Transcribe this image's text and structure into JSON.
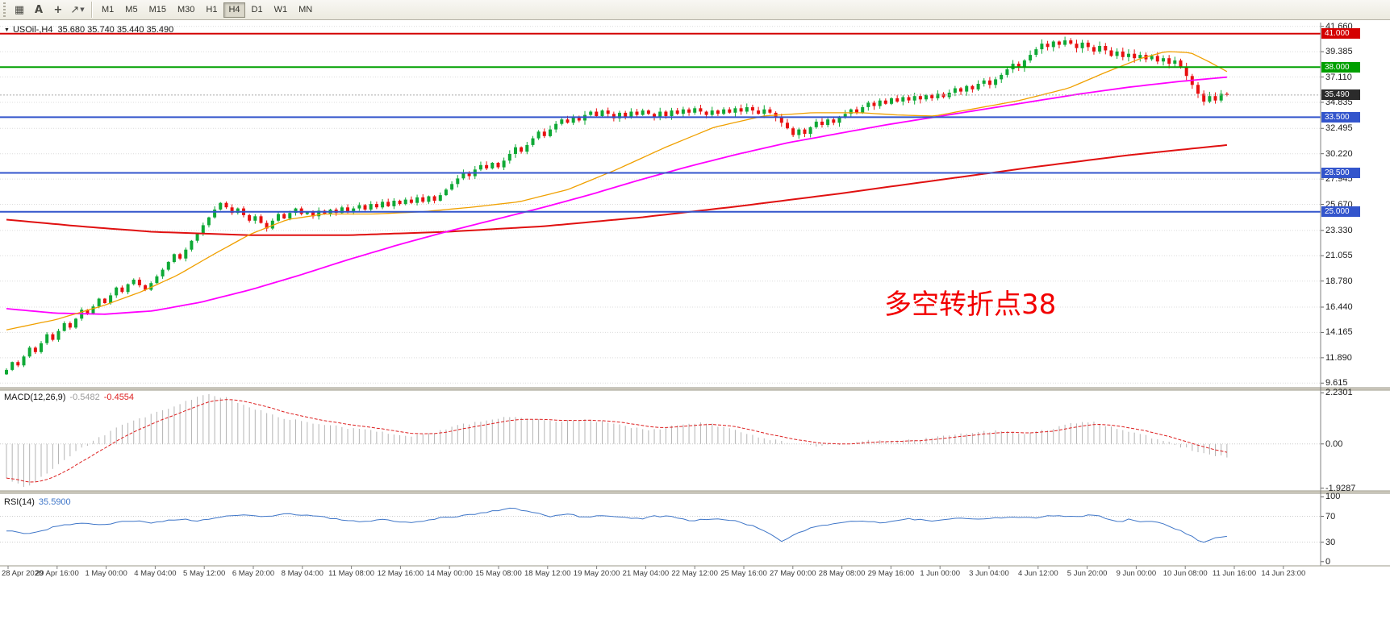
{
  "toolbar": {
    "icons": [
      {
        "name": "bar-chart-icon",
        "glyph": "▦"
      },
      {
        "name": "text-label-icon",
        "glyph": "A"
      },
      {
        "name": "crosshair-icon",
        "glyph": "+"
      },
      {
        "name": "line-tools-icon",
        "glyph": "↗"
      }
    ],
    "timeframes": [
      "M1",
      "M5",
      "M15",
      "M30",
      "H1",
      "H4",
      "D1",
      "W1",
      "MN"
    ],
    "active_timeframe": "H4"
  },
  "chart": {
    "symbol_period": "USOil-,H4",
    "ohlc_text": "35.680 35.740 35.440 35.490",
    "annotation": {
      "text": "多空转折点38",
      "color": "#f20000"
    },
    "price_axis": {
      "range": [
        9.2,
        42.0
      ],
      "ticks": [
        "41.660",
        "39.385",
        "37.110",
        "34.835",
        "32.495",
        "30.220",
        "27.945",
        "25.670",
        "23.330",
        "21.055",
        "18.780",
        "16.440",
        "14.165",
        "11.890",
        "9.615"
      ]
    },
    "hlines": [
      {
        "price": 41.0,
        "label": "41.000",
        "color": "#d40000"
      },
      {
        "price": 38.0,
        "label": "38.000",
        "color": "#00a000"
      },
      {
        "price": 33.5,
        "label": "33.500",
        "color": "#3355cc"
      },
      {
        "price": 28.5,
        "label": "28.500",
        "color": "#3355cc"
      },
      {
        "price": 25.0,
        "label": "25.000",
        "color": "#3355cc"
      }
    ],
    "bid": {
      "price": 35.49,
      "label": "35.490",
      "color": "#2b2b2b"
    }
  },
  "macd": {
    "label": "MACD(12,26,9)",
    "value_main": "-0.5482",
    "value_signal": "-0.4554",
    "range": [
      -2.05,
      2.35
    ],
    "ticks": [
      "2.2301",
      "0.00",
      "-1.9287"
    ],
    "hist_color": "#b4b4b4",
    "signal_color": "#dd2020"
  },
  "rsi": {
    "label": "RSI(14)",
    "value": "35.5900",
    "range": [
      -4,
      103
    ],
    "ticks": [
      "100",
      "70",
      "30",
      "0"
    ],
    "levels": [
      30,
      70
    ],
    "line_color": "#3f76c8"
  },
  "chart_data": {
    "type": "candlestick",
    "symbol": "USOil",
    "timeframe": "H4",
    "ohlc_current": {
      "open": 35.68,
      "high": 35.74,
      "low": 35.44,
      "close": 35.49
    },
    "up_color": "#0fa936",
    "down_color": "#e81010",
    "open_first": 10.4,
    "closes": [
      10.8,
      11.5,
      11.2,
      12.0,
      12.8,
      12.4,
      13.2,
      14.0,
      13.5,
      14.3,
      15.0,
      14.6,
      15.4,
      16.2,
      15.8,
      16.5,
      17.2,
      16.8,
      17.5,
      18.2,
      17.8,
      18.5,
      18.9,
      18.4,
      18.0,
      18.6,
      19.2,
      19.8,
      20.5,
      21.2,
      20.8,
      21.6,
      22.4,
      23.0,
      23.8,
      24.5,
      25.2,
      25.8,
      25.4,
      24.9,
      25.3,
      24.7,
      24.2,
      24.6,
      24.0,
      23.5,
      24.2,
      24.8,
      24.4,
      24.9,
      25.3,
      24.8,
      25.0,
      24.6,
      25.1,
      24.8,
      25.2,
      24.9,
      25.4,
      25.0,
      25.3,
      25.6,
      25.2,
      25.7,
      25.4,
      25.9,
      25.5,
      26.0,
      25.7,
      26.1,
      25.8,
      26.3,
      25.9,
      26.4,
      26.0,
      26.5,
      27.0,
      27.5,
      28.0,
      28.5,
      28.2,
      28.8,
      29.2,
      28.9,
      29.4,
      29.0,
      29.6,
      30.2,
      30.8,
      30.4,
      31.0,
      31.6,
      32.2,
      31.8,
      32.4,
      32.9,
      33.3,
      33.0,
      33.5,
      33.2,
      33.7,
      34.0,
      33.6,
      34.1,
      33.8,
      33.4,
      33.9,
      33.5,
      34.0,
      33.7,
      34.1,
      33.8,
      33.5,
      34.0,
      33.6,
      34.1,
      33.8,
      34.2,
      33.9,
      34.3,
      34.0,
      33.7,
      34.1,
      33.8,
      34.2,
      33.9,
      34.3,
      34.0,
      34.4,
      34.1,
      33.8,
      34.2,
      33.9,
      33.5,
      33.0,
      32.5,
      31.9,
      32.4,
      32.0,
      32.6,
      33.1,
      32.8,
      33.3,
      33.0,
      33.5,
      33.8,
      34.2,
      33.9,
      34.4,
      34.8,
      34.5,
      35.0,
      34.7,
      35.2,
      34.9,
      35.3,
      35.0,
      35.4,
      35.1,
      35.5,
      35.2,
      35.6,
      35.3,
      35.7,
      36.1,
      35.8,
      36.3,
      36.0,
      36.5,
      36.8,
      36.4,
      36.9,
      37.3,
      37.8,
      38.3,
      38.0,
      38.6,
      39.1,
      39.6,
      40.1,
      39.8,
      40.3,
      40.0,
      40.4,
      40.1,
      39.7,
      40.2,
      39.8,
      39.4,
      39.9,
      39.5,
      39.0,
      39.4,
      38.9,
      39.2,
      38.8,
      39.1,
      38.7,
      39.0,
      38.5,
      38.8,
      38.3,
      38.6,
      38.0,
      37.2,
      36.4,
      35.6,
      34.9,
      35.4,
      35.0,
      35.6,
      35.49
    ],
    "ma_fast": {
      "color": "#f0a000",
      "width": 1.3,
      "points": [
        [
          0,
          14.4
        ],
        [
          0.04,
          15.3
        ],
        [
          0.08,
          16.6
        ],
        [
          0.11,
          17.8
        ],
        [
          0.14,
          19.3
        ],
        [
          0.17,
          21.2
        ],
        [
          0.2,
          23.0
        ],
        [
          0.23,
          24.3
        ],
        [
          0.26,
          24.8
        ],
        [
          0.3,
          24.8
        ],
        [
          0.34,
          25.0
        ],
        [
          0.38,
          25.4
        ],
        [
          0.42,
          25.9
        ],
        [
          0.46,
          27.0
        ],
        [
          0.5,
          28.8
        ],
        [
          0.54,
          30.8
        ],
        [
          0.58,
          32.6
        ],
        [
          0.62,
          33.6
        ],
        [
          0.66,
          33.9
        ],
        [
          0.7,
          33.9
        ],
        [
          0.73,
          33.7
        ],
        [
          0.76,
          33.6
        ],
        [
          0.79,
          34.2
        ],
        [
          0.83,
          35.0
        ],
        [
          0.87,
          36.1
        ],
        [
          0.9,
          37.5
        ],
        [
          0.93,
          38.8
        ],
        [
          0.95,
          39.4
        ],
        [
          0.97,
          39.3
        ],
        [
          0.985,
          38.5
        ],
        [
          1,
          37.6
        ]
      ]
    },
    "ma_mid": {
      "color": "#ff00ff",
      "width": 1.8,
      "points": [
        [
          0,
          16.3
        ],
        [
          0.04,
          15.9
        ],
        [
          0.08,
          15.8
        ],
        [
          0.12,
          16.1
        ],
        [
          0.16,
          16.9
        ],
        [
          0.2,
          18.0
        ],
        [
          0.24,
          19.3
        ],
        [
          0.28,
          20.7
        ],
        [
          0.32,
          22.0
        ],
        [
          0.36,
          23.2
        ],
        [
          0.4,
          24.3
        ],
        [
          0.44,
          25.4
        ],
        [
          0.48,
          26.6
        ],
        [
          0.52,
          27.9
        ],
        [
          0.56,
          29.1
        ],
        [
          0.6,
          30.2
        ],
        [
          0.64,
          31.2
        ],
        [
          0.68,
          32.0
        ],
        [
          0.72,
          32.8
        ],
        [
          0.76,
          33.5
        ],
        [
          0.8,
          34.2
        ],
        [
          0.84,
          34.9
        ],
        [
          0.88,
          35.6
        ],
        [
          0.92,
          36.2
        ],
        [
          0.96,
          36.7
        ],
        [
          1,
          37.1
        ]
      ]
    },
    "ma_slow": {
      "color": "#e01010",
      "width": 2,
      "points": [
        [
          0,
          24.3
        ],
        [
          0.06,
          23.7
        ],
        [
          0.12,
          23.2
        ],
        [
          0.2,
          22.9
        ],
        [
          0.28,
          22.9
        ],
        [
          0.36,
          23.2
        ],
        [
          0.44,
          23.7
        ],
        [
          0.52,
          24.5
        ],
        [
          0.6,
          25.5
        ],
        [
          0.68,
          26.6
        ],
        [
          0.76,
          27.8
        ],
        [
          0.84,
          29.0
        ],
        [
          0.92,
          30.1
        ],
        [
          1,
          31.0
        ]
      ]
    },
    "macd_points": [
      [
        0,
        -1.5
      ],
      [
        0.015,
        -1.9
      ],
      [
        0.03,
        -1.4
      ],
      [
        0.05,
        -0.6
      ],
      [
        0.07,
        0.1
      ],
      [
        0.09,
        0.7
      ],
      [
        0.11,
        1.1
      ],
      [
        0.13,
        1.5
      ],
      [
        0.15,
        1.9
      ],
      [
        0.165,
        2.2
      ],
      [
        0.18,
        2.0
      ],
      [
        0.2,
        1.6
      ],
      [
        0.22,
        1.2
      ],
      [
        0.25,
        0.9
      ],
      [
        0.28,
        0.7
      ],
      [
        0.31,
        0.5
      ],
      [
        0.33,
        0.35
      ],
      [
        0.35,
        0.5
      ],
      [
        0.37,
        0.8
      ],
      [
        0.39,
        1.0
      ],
      [
        0.41,
        1.2
      ],
      [
        0.43,
        1.1
      ],
      [
        0.45,
        0.95
      ],
      [
        0.47,
        1.05
      ],
      [
        0.49,
        0.95
      ],
      [
        0.51,
        0.75
      ],
      [
        0.53,
        0.6
      ],
      [
        0.55,
        0.8
      ],
      [
        0.57,
        0.95
      ],
      [
        0.59,
        0.7
      ],
      [
        0.61,
        0.4
      ],
      [
        0.63,
        0.15
      ],
      [
        0.65,
        0.0
      ],
      [
        0.67,
        -0.1
      ],
      [
        0.69,
        0.05
      ],
      [
        0.71,
        0.15
      ],
      [
        0.73,
        0.1
      ],
      [
        0.75,
        0.2
      ],
      [
        0.77,
        0.35
      ],
      [
        0.79,
        0.5
      ],
      [
        0.81,
        0.55
      ],
      [
        0.83,
        0.45
      ],
      [
        0.85,
        0.6
      ],
      [
        0.87,
        0.85
      ],
      [
        0.89,
        0.95
      ],
      [
        0.91,
        0.7
      ],
      [
        0.93,
        0.4
      ],
      [
        0.95,
        0.1
      ],
      [
        0.97,
        -0.25
      ],
      [
        0.985,
        -0.45
      ],
      [
        1,
        -0.55
      ]
    ],
    "rsi_points": [
      [
        0,
        48
      ],
      [
        0.02,
        42
      ],
      [
        0.04,
        54
      ],
      [
        0.06,
        60
      ],
      [
        0.08,
        57
      ],
      [
        0.1,
        63
      ],
      [
        0.12,
        60
      ],
      [
        0.14,
        66
      ],
      [
        0.16,
        63
      ],
      [
        0.17,
        68
      ],
      [
        0.19,
        72
      ],
      [
        0.21,
        69
      ],
      [
        0.23,
        74
      ],
      [
        0.25,
        71
      ],
      [
        0.27,
        66
      ],
      [
        0.29,
        61
      ],
      [
        0.31,
        65
      ],
      [
        0.33,
        60
      ],
      [
        0.35,
        66
      ],
      [
        0.37,
        70
      ],
      [
        0.385,
        74
      ],
      [
        0.4,
        79
      ],
      [
        0.415,
        82
      ],
      [
        0.43,
        76
      ],
      [
        0.445,
        70
      ],
      [
        0.46,
        73
      ],
      [
        0.475,
        68
      ],
      [
        0.49,
        72
      ],
      [
        0.5,
        69
      ],
      [
        0.52,
        66
      ],
      [
        0.53,
        71
      ],
      [
        0.55,
        68
      ],
      [
        0.56,
        63
      ],
      [
        0.58,
        66
      ],
      [
        0.6,
        62
      ],
      [
        0.61,
        56
      ],
      [
        0.625,
        44
      ],
      [
        0.635,
        32
      ],
      [
        0.645,
        41
      ],
      [
        0.66,
        53
      ],
      [
        0.68,
        59
      ],
      [
        0.7,
        63
      ],
      [
        0.72,
        60
      ],
      [
        0.74,
        66
      ],
      [
        0.76,
        63
      ],
      [
        0.78,
        67
      ],
      [
        0.8,
        65
      ],
      [
        0.82,
        69
      ],
      [
        0.84,
        67
      ],
      [
        0.86,
        72
      ],
      [
        0.875,
        69
      ],
      [
        0.89,
        73
      ],
      [
        0.9,
        67
      ],
      [
        0.91,
        61
      ],
      [
        0.92,
        65
      ],
      [
        0.93,
        60
      ],
      [
        0.94,
        63
      ],
      [
        0.95,
        56
      ],
      [
        0.96,
        49
      ],
      [
        0.97,
        41
      ],
      [
        0.975,
        34
      ],
      [
        0.98,
        30
      ],
      [
        0.99,
        37
      ],
      [
        1,
        38
      ]
    ],
    "x_labels": [
      "28 Apr 2020",
      "29 Apr 16:00",
      "1 May 00:00",
      "4 May 04:00",
      "5 May 12:00",
      "6 May 20:00",
      "8 May 04:00",
      "11 May 08:00",
      "12 May 16:00",
      "14 May 00:00",
      "15 May 08:00",
      "18 May 12:00",
      "19 May 20:00",
      "21 May 04:00",
      "22 May 12:00",
      "25 May 16:00",
      "27 May 00:00",
      "28 May 08:00",
      "29 May 16:00",
      "1 Jun 00:00",
      "3 Jun 04:00",
      "4 Jun 12:00",
      "5 Jun 20:00",
      "9 Jun 00:00",
      "10 Jun 08:00",
      "11 Jun 16:00",
      "14 Jun 23:00"
    ]
  }
}
